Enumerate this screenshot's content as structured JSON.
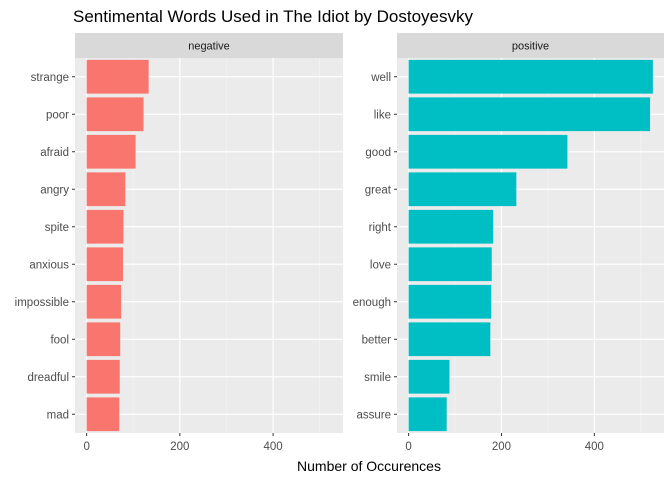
{
  "chart_data": {
    "type": "bar",
    "orientation": "horizontal",
    "title": "Sentimental Words Used in The Idiot by Dostoyesvky",
    "xlabel": "Number of Occurences",
    "ylabel": "",
    "xlim": [
      -25,
      550
    ],
    "x_ticks": [
      0,
      200,
      400
    ],
    "grid": true,
    "legend": "none",
    "facets": [
      {
        "name": "negative",
        "color": "#F8766D",
        "categories": [
          "strange",
          "poor",
          "afraid",
          "angry",
          "spite",
          "anxious",
          "impossible",
          "fool",
          "dreadful",
          "mad"
        ],
        "values": [
          133,
          122,
          105,
          83,
          79,
          78,
          74,
          72,
          71,
          70
        ]
      },
      {
        "name": "positive",
        "color": "#00BFC4",
        "categories": [
          "well",
          "like",
          "good",
          "great",
          "right",
          "love",
          "enough",
          "better",
          "smile",
          "assure"
        ],
        "values": [
          526,
          520,
          342,
          232,
          182,
          179,
          178,
          176,
          88,
          82
        ]
      }
    ]
  }
}
